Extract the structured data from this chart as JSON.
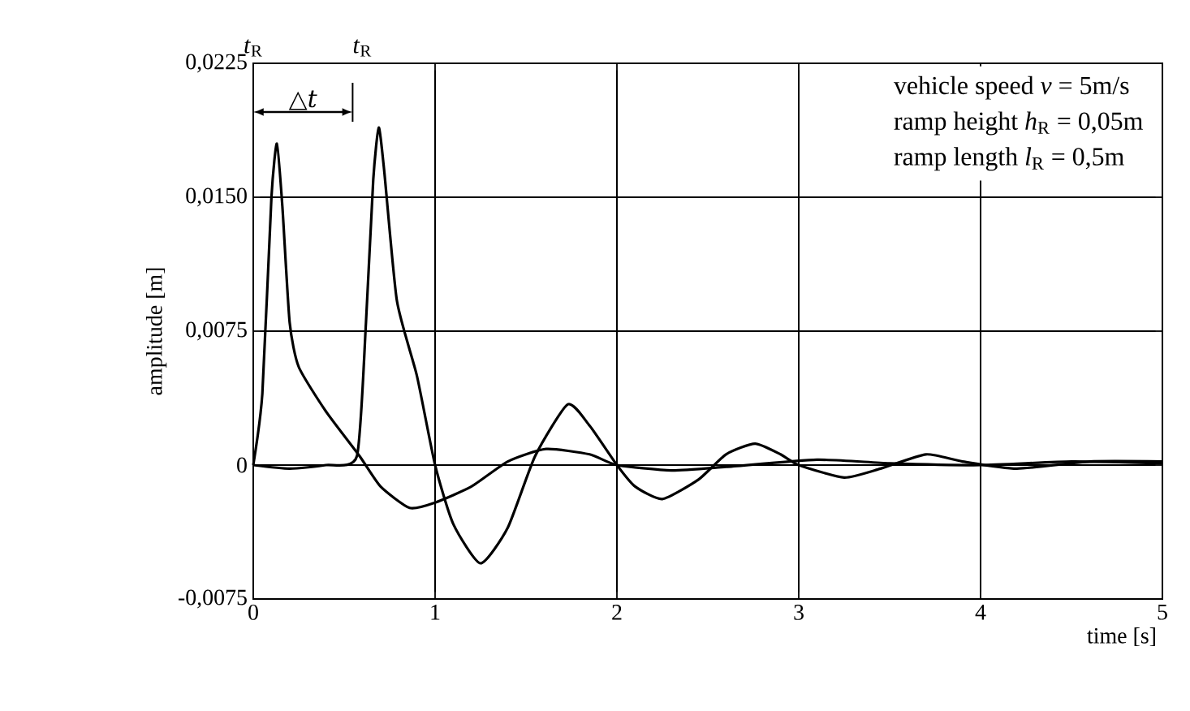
{
  "chart_data": {
    "type": "line",
    "xlabel": "time [s]",
    "ylabel": "amplitude [m]",
    "xlim": [
      0,
      5
    ],
    "xticks": [
      0,
      1,
      2,
      3,
      4,
      5
    ],
    "ylim": [
      -0.0075,
      0.0225
    ],
    "yticks": [
      {
        "value": -0.0075,
        "label": "-0,0075"
      },
      {
        "value": 0,
        "label": "0"
      },
      {
        "value": 0.0075,
        "label": "0,0075"
      },
      {
        "value": 0.015,
        "label": "0,0150"
      },
      {
        "value": 0.0225,
        "label": "0,0225"
      }
    ],
    "grid": true,
    "marker": "none",
    "line_style": "solid",
    "series": [
      {
        "color": "#000000",
        "x": [
          0,
          0.05,
          0.1,
          0.13,
          0.16,
          0.2,
          0.25,
          0.4,
          0.585,
          0.7,
          0.86,
          1.0,
          1.2,
          1.4,
          1.61,
          1.85,
          2.0,
          2.3,
          2.6,
          3.1,
          3.5,
          4.0,
          4.5,
          5.0
        ],
        "values": [
          0,
          0.004,
          0.015,
          0.018,
          0.0145,
          0.008,
          0.0055,
          0.003,
          0.0005,
          -0.0012,
          -0.0024,
          -0.0021,
          -0.0012,
          0.0002,
          0.0009,
          0.0006,
          0.0,
          -0.0003,
          -0.0001,
          0.0003,
          0.0001,
          0.0,
          0.0002,
          0.0001
        ]
      },
      {
        "color": "#000000",
        "x": [
          0,
          0.2,
          0.4,
          0.57,
          0.62,
          0.66,
          0.69,
          0.72,
          0.79,
          0.9,
          1.0,
          1.1,
          1.25,
          1.4,
          1.55,
          1.73,
          1.85,
          2.0,
          2.1,
          2.25,
          2.45,
          2.6,
          2.76,
          2.9,
          3.0,
          3.25,
          3.45,
          3.7,
          3.9,
          4.2,
          4.6,
          5.0
        ],
        "values": [
          0,
          -0.0002,
          0.0,
          0.0005,
          0.008,
          0.016,
          0.0189,
          0.0165,
          0.0092,
          0.005,
          0.0,
          -0.0033,
          -0.0055,
          -0.0035,
          0.0005,
          0.0034,
          0.0022,
          0.0,
          -0.0012,
          -0.0019,
          -0.0008,
          0.0006,
          0.0012,
          0.0006,
          0.0,
          -0.0007,
          -0.0002,
          0.0006,
          0.0002,
          -0.0002,
          0.0002,
          0.0002
        ]
      }
    ],
    "annotations": [
      "*t*$_{R}$",
      "*t*$_{R}$",
      "△*t*",
      "vehicle speed *v* = 5m/s",
      "ramp height  *h*$_{R}$ = 0,05m",
      "ramp length  *l*$_{R}$ = 0,5m"
    ]
  }
}
